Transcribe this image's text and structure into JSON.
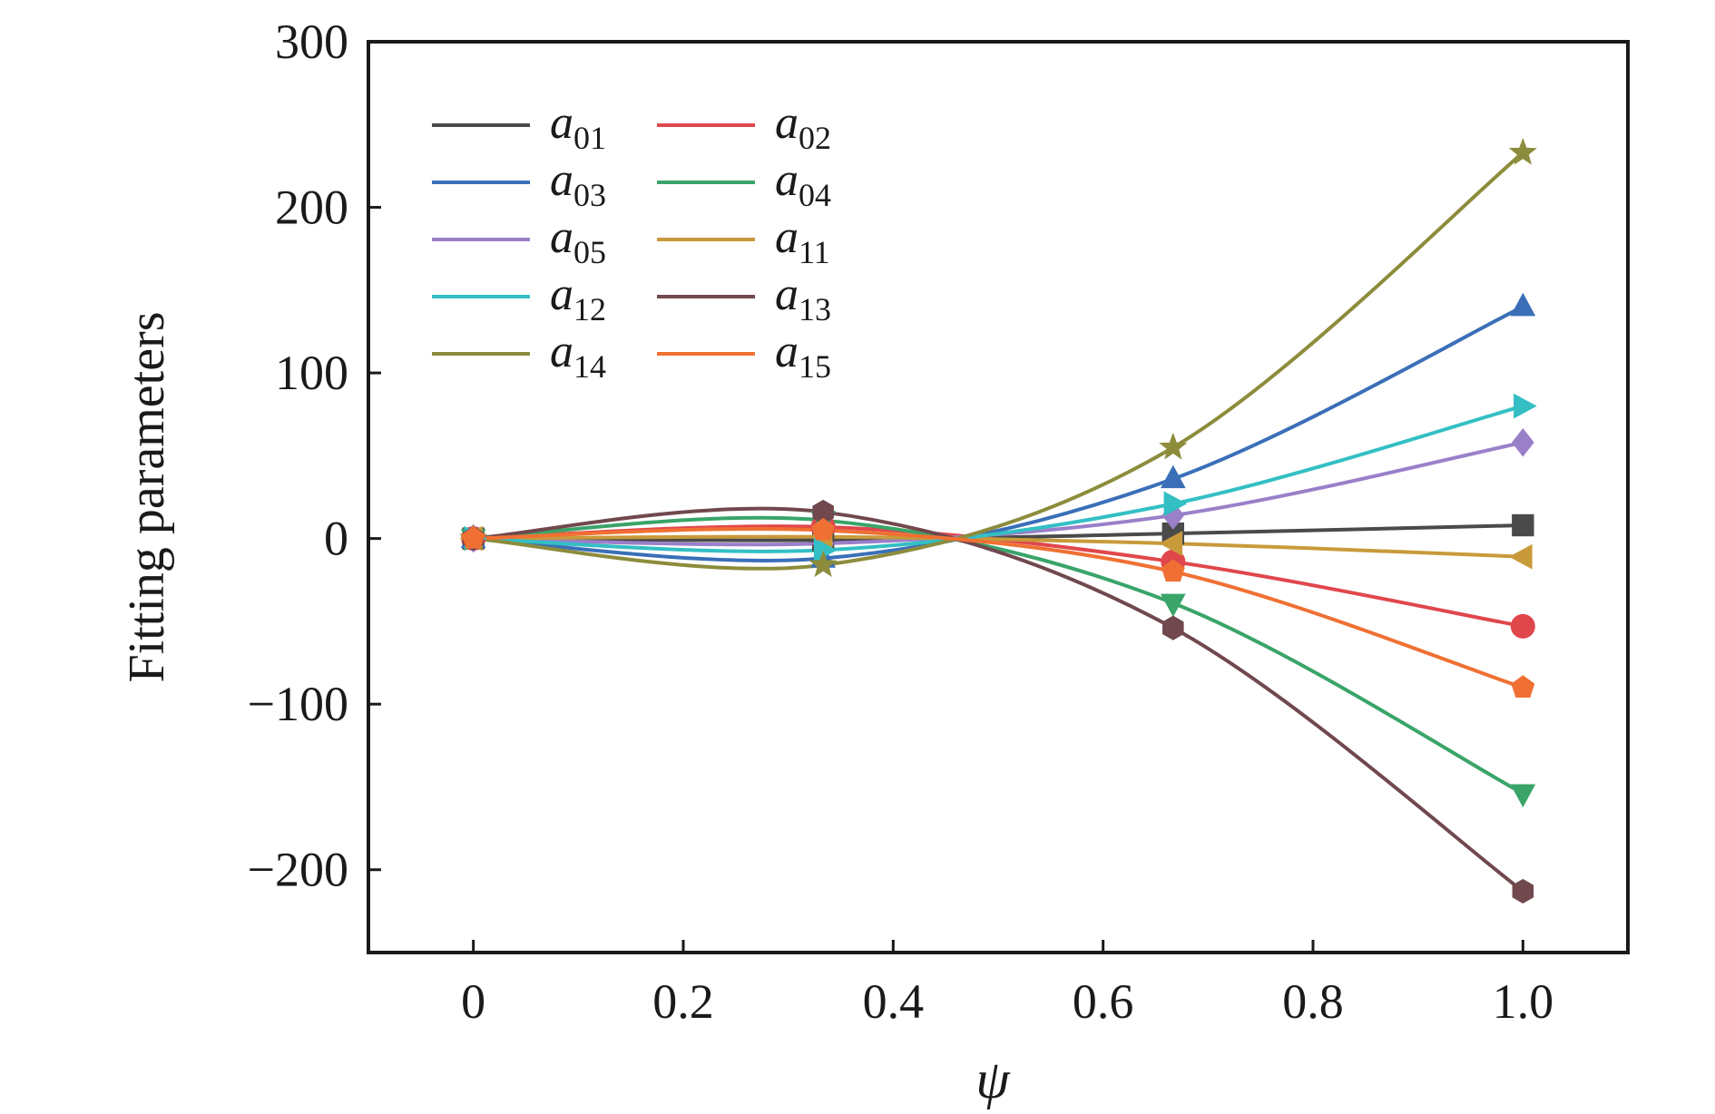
{
  "chart_data": {
    "type": "line",
    "title": "",
    "xlabel": "ψ",
    "ylabel": "Fitting parameters",
    "xlim": [
      -0.1,
      1.1
    ],
    "ylim": [
      -250,
      300
    ],
    "xticks": [
      0,
      0.2,
      0.4,
      0.6,
      0.8,
      1.0
    ],
    "xtick_labels": [
      "0",
      "0.2",
      "0.4",
      "0.6",
      "0.8",
      "1.0"
    ],
    "yticks": [
      -200,
      -100,
      0,
      100,
      200,
      300
    ],
    "ytick_labels": [
      "−200",
      "−100",
      "0",
      "100",
      "200",
      "300"
    ],
    "grid": false,
    "legend_position": "top-left",
    "legend_columns": 2,
    "x": [
      0,
      0.3333,
      0.6667,
      1.0
    ],
    "series": [
      {
        "name": "a01",
        "label_main": "a",
        "label_sub": "01",
        "color": "#4a4a4a",
        "marker": "square",
        "values": [
          0,
          -1,
          3,
          8
        ]
      },
      {
        "name": "a02",
        "label_main": "a",
        "label_sub": "02",
        "color": "#e0474c",
        "marker": "circle",
        "values": [
          0,
          7,
          -14,
          -53
        ]
      },
      {
        "name": "a03",
        "label_main": "a",
        "label_sub": "03",
        "color": "#3a6fb8",
        "marker": "triangle-up",
        "values": [
          0,
          -12,
          36,
          140
        ]
      },
      {
        "name": "a04",
        "label_main": "a",
        "label_sub": "04",
        "color": "#3aa469",
        "marker": "triangle-down",
        "values": [
          0,
          11,
          -39,
          -154
        ]
      },
      {
        "name": "a05",
        "label_main": "a",
        "label_sub": "05",
        "color": "#9a7fc9",
        "marker": "diamond",
        "values": [
          0,
          -3,
          14,
          58
        ]
      },
      {
        "name": "a11",
        "label_main": "a",
        "label_sub": "11",
        "color": "#c89a3a",
        "marker": "triangle-left",
        "values": [
          0,
          1,
          -3,
          -11
        ]
      },
      {
        "name": "a12",
        "label_main": "a",
        "label_sub": "12",
        "color": "#33bfc4",
        "marker": "triangle-right",
        "values": [
          0,
          -7,
          21,
          80
        ]
      },
      {
        "name": "a13",
        "label_main": "a",
        "label_sub": "13",
        "color": "#70484e",
        "marker": "hexagon",
        "values": [
          0,
          16,
          -54,
          -213
        ]
      },
      {
        "name": "a14",
        "label_main": "a",
        "label_sub": "14",
        "color": "#8c8c3c",
        "marker": "star",
        "values": [
          0,
          -16,
          55,
          233
        ]
      },
      {
        "name": "a15",
        "label_main": "a",
        "label_sub": "15",
        "color": "#f07033",
        "marker": "pentagon",
        "values": [
          0,
          5,
          -20,
          -90
        ]
      }
    ]
  }
}
